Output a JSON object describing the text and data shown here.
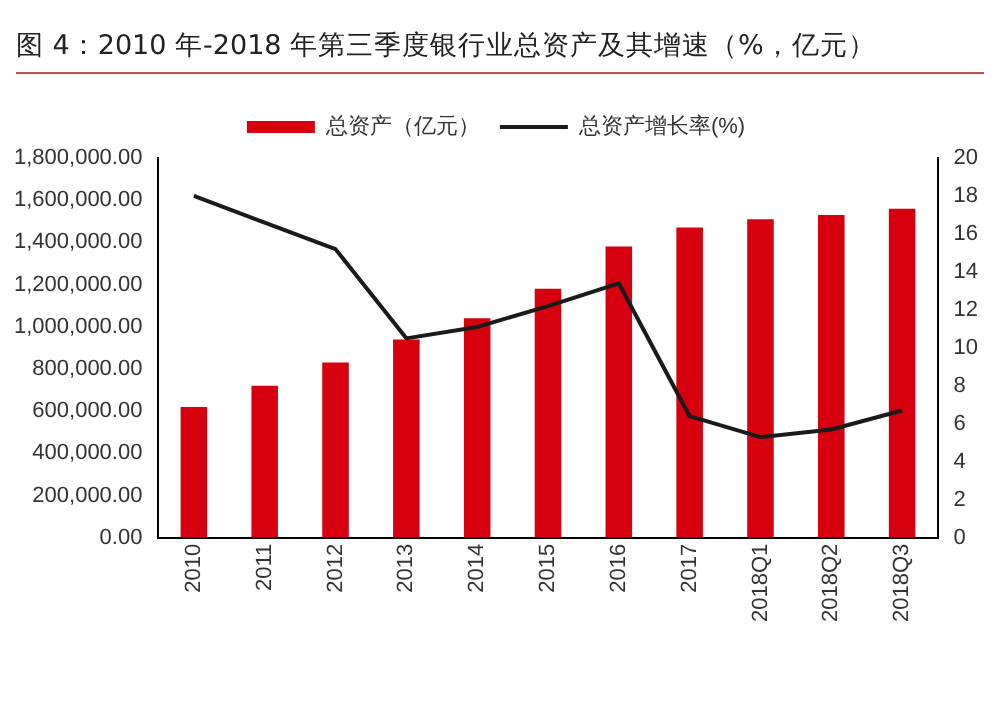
{
  "chart_data": {
    "type": "bar",
    "title": "图 4：2010 年-2018 年第三季度银行业总资产及其增速（%，亿元）",
    "categories": [
      "2010",
      "2011",
      "2012",
      "2013",
      "2014",
      "2015",
      "2016",
      "2017",
      "2018Q1",
      "2018Q2",
      "2018Q3"
    ],
    "series": [
      {
        "name": "总资产（亿元）",
        "color": "#d7000f",
        "values": [
          620000,
          720000,
          830000,
          940000,
          1040000,
          1180000,
          1380000,
          1470000,
          1510000,
          1530000,
          1560000
        ]
      },
      {
        "name": "总资产增长率(%)",
        "type": "line",
        "axis": "y2",
        "color": "#1a1a1a",
        "values": [
          18.0,
          16.6,
          15.2,
          10.5,
          11.1,
          12.2,
          13.4,
          6.4,
          5.3,
          5.7,
          6.7
        ]
      }
    ],
    "ylim": [
      0,
      1800000
    ],
    "yticks": [
      {
        "value": 0,
        "label": "0.00"
      },
      {
        "value": 200000,
        "label": "200,000.00"
      },
      {
        "value": 400000,
        "label": "400,000.00"
      },
      {
        "value": 600000,
        "label": "600,000.00"
      },
      {
        "value": 800000,
        "label": "800,000.00"
      },
      {
        "value": 1000000,
        "label": "1,000,000.00"
      },
      {
        "value": 1200000,
        "label": "1,200,000.00"
      },
      {
        "value": 1400000,
        "label": "1,400,000.00"
      },
      {
        "value": 1600000,
        "label": "1,600,000.00"
      },
      {
        "value": 1800000,
        "label": "1,800,000.00"
      }
    ],
    "y2lim": [
      0,
      20
    ],
    "y2ticks": [
      0,
      2,
      4,
      6,
      8,
      10,
      12,
      14,
      16,
      18,
      20
    ],
    "grid": false,
    "legend": "top",
    "marker": "none",
    "line_style": "solid"
  }
}
